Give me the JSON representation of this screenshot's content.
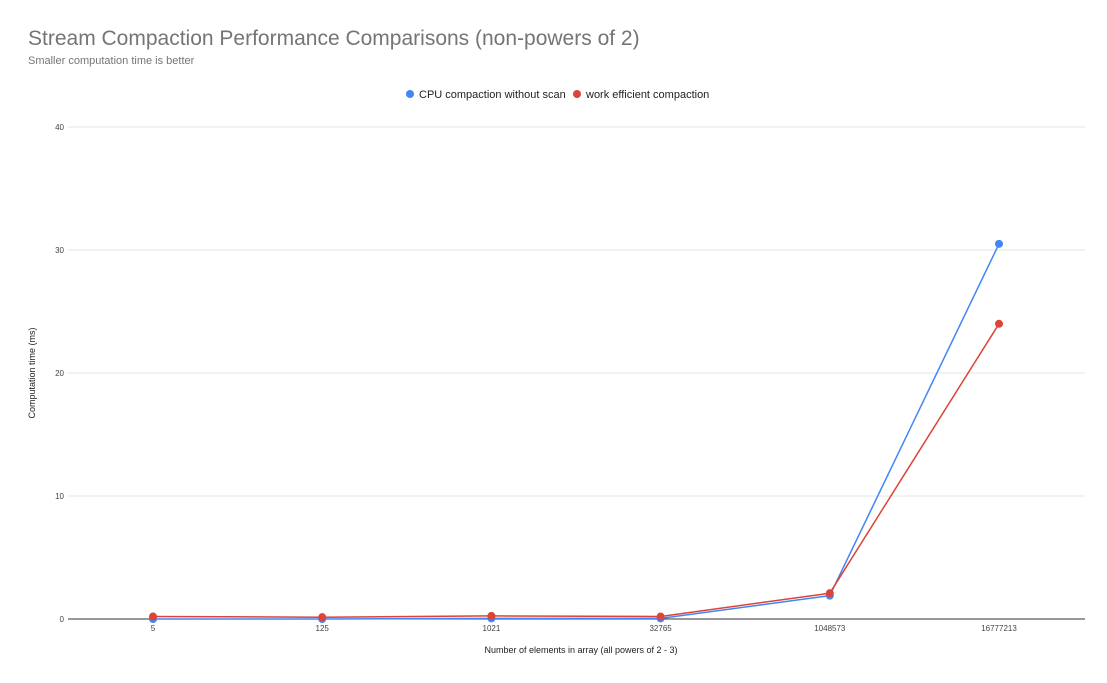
{
  "chart_data": {
    "type": "line",
    "title": "Stream Compaction Performance Comparisons (non-powers of 2)",
    "subtitle": "Smaller computation time is better",
    "xlabel": "Number of elements in array (all powers of 2 - 3)",
    "ylabel": "Computation time (ms)",
    "categories": [
      "5",
      "125",
      "1021",
      "32765",
      "1048573",
      "16777213"
    ],
    "ylim": [
      0,
      40
    ],
    "yticks": [
      0,
      10,
      20,
      30,
      40
    ],
    "grid": true,
    "legend_position": "top",
    "series": [
      {
        "name": "CPU compaction without scan",
        "color": "#4285f4",
        "values": [
          0.0,
          0.0,
          0.05,
          0.05,
          1.9,
          30.5
        ]
      },
      {
        "name": "work efficient compaction",
        "color": "#db4437",
        "values": [
          0.2,
          0.15,
          0.25,
          0.2,
          2.1,
          24.0
        ]
      }
    ]
  }
}
